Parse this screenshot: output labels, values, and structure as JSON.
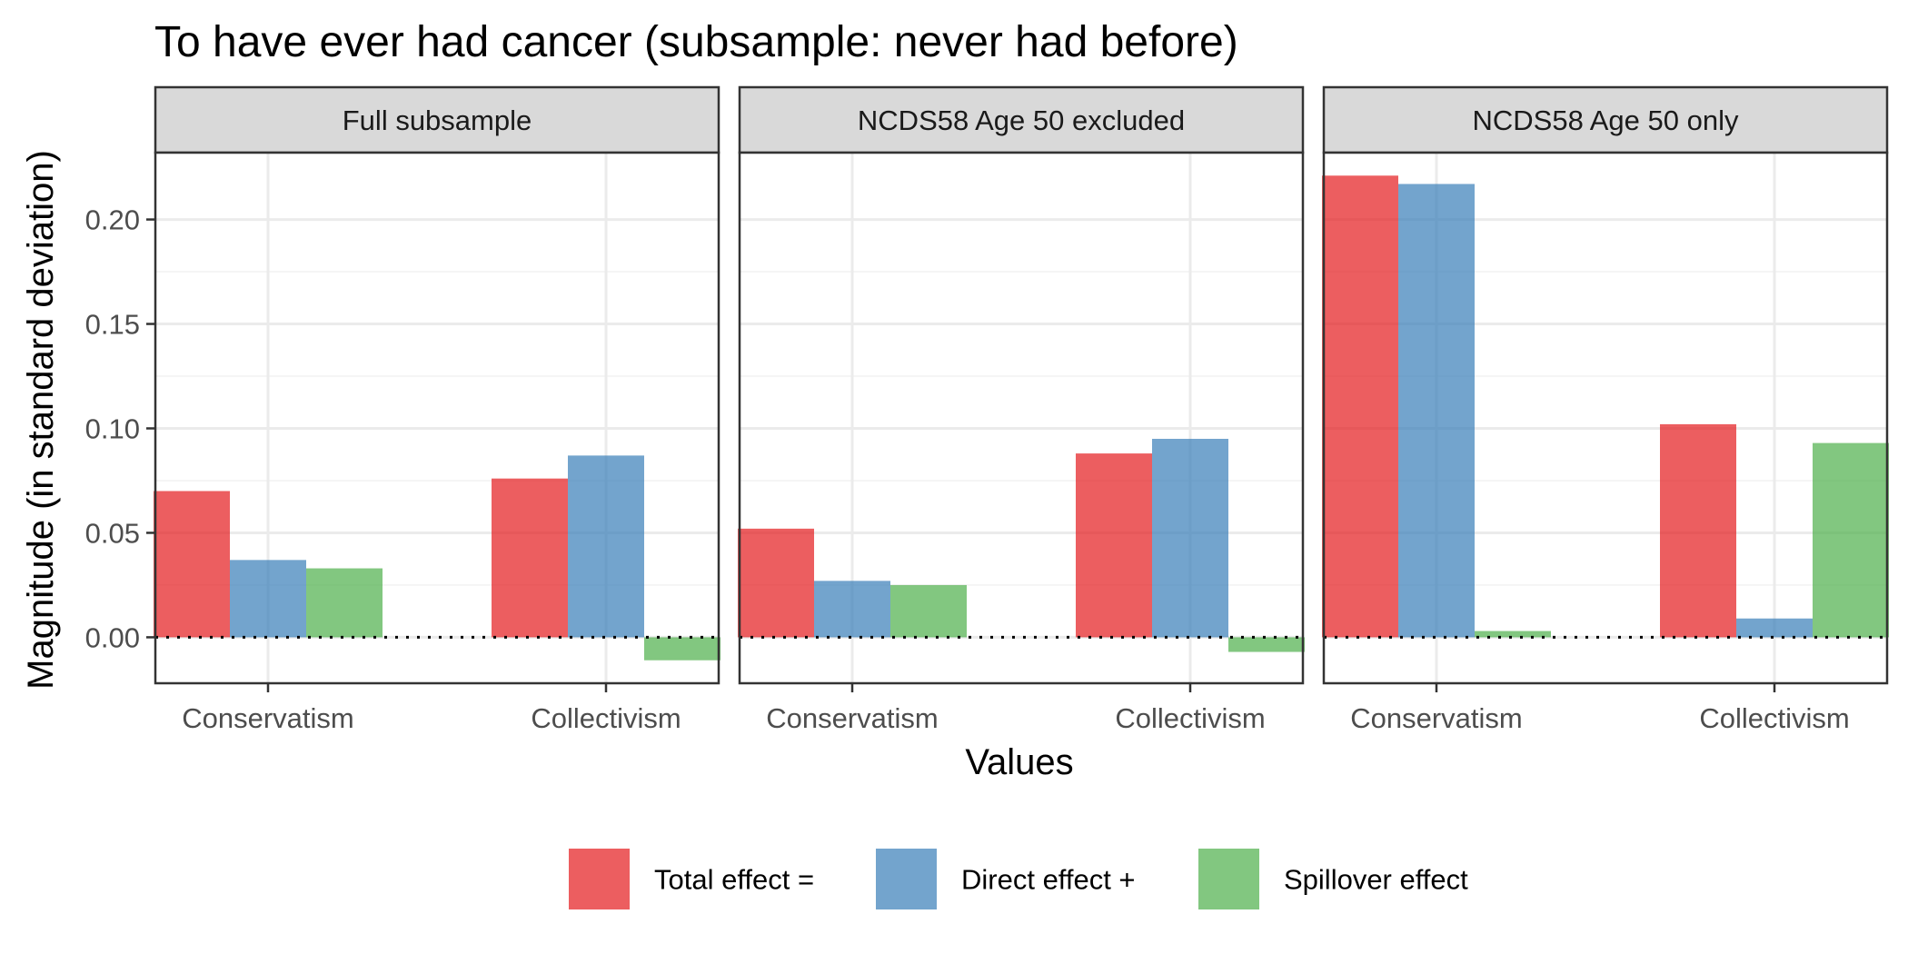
{
  "chart_data": {
    "type": "bar",
    "title": "To have ever had cancer (subsample: never had before)",
    "xlabel": "Values",
    "ylabel": "Magnitude (in standard deviation)",
    "ylim": [
      -0.022,
      0.232
    ],
    "yticks": [
      0.0,
      0.05,
      0.1,
      0.15,
      0.2
    ],
    "ytick_labels": [
      "0.00",
      "0.05",
      "0.10",
      "0.15",
      "0.20"
    ],
    "grid": true,
    "zero_line": "dotted",
    "legend_position": "bottom",
    "categories": [
      "Conservatism",
      "Collectivism"
    ],
    "series_names": [
      "Total effect =",
      "Direct effect +",
      "Spillover effect"
    ],
    "series_colors": [
      "#e41a1c",
      "#377eb8",
      "#4daf4a"
    ],
    "bar_opacity": 0.7,
    "panels": [
      {
        "label": "Full subsample",
        "series": [
          {
            "name": "Total effect =",
            "values": [
              0.07,
              0.076
            ]
          },
          {
            "name": "Direct effect +",
            "values": [
              0.037,
              0.087
            ]
          },
          {
            "name": "Spillover effect",
            "values": [
              0.033,
              -0.011
            ]
          }
        ]
      },
      {
        "label": "NCDS58 Age 50 excluded",
        "series": [
          {
            "name": "Total effect =",
            "values": [
              0.052,
              0.088
            ]
          },
          {
            "name": "Direct effect +",
            "values": [
              0.027,
              0.095
            ]
          },
          {
            "name": "Spillover effect",
            "values": [
              0.025,
              -0.007
            ]
          }
        ]
      },
      {
        "label": "NCDS58 Age 50 only",
        "series": [
          {
            "name": "Total effect =",
            "values": [
              0.221,
              0.102
            ]
          },
          {
            "name": "Direct effect +",
            "values": [
              0.217,
              0.009
            ]
          },
          {
            "name": "Spillover effect",
            "values": [
              0.003,
              0.093
            ]
          }
        ]
      }
    ]
  }
}
